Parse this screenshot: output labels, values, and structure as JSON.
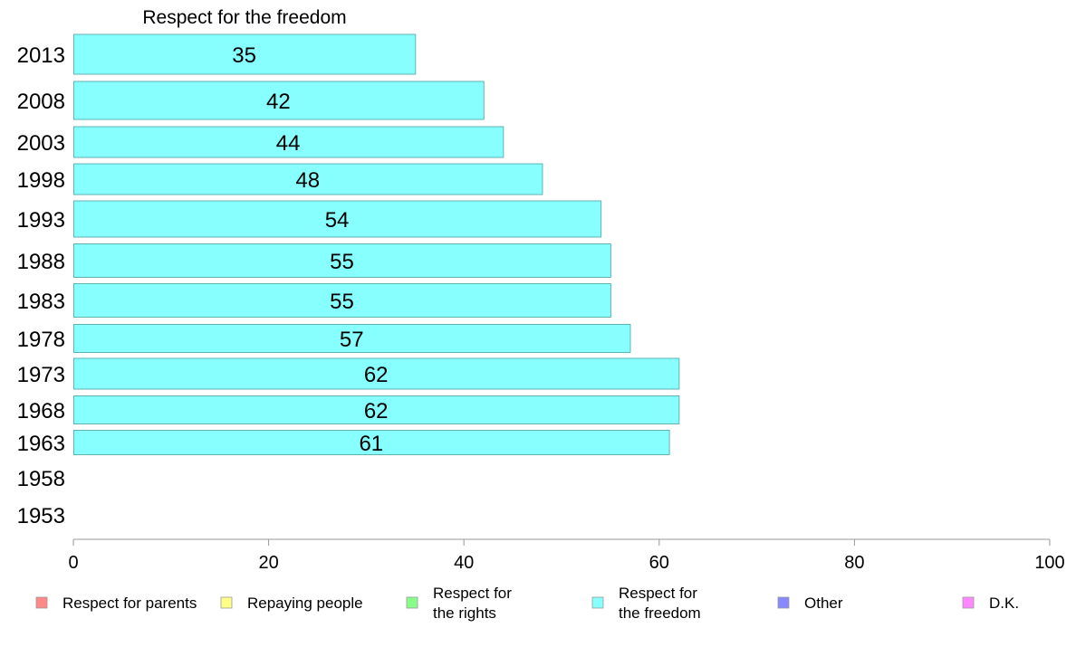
{
  "chart_data": {
    "type": "bar",
    "orientation": "horizontal",
    "title": "Respect for the freedom",
    "xlabel": "",
    "ylabel": "",
    "categories": [
      "2013",
      "2008",
      "2003",
      "1998",
      "1993",
      "1988",
      "1983",
      "1978",
      "1973",
      "1968",
      "1963",
      "1958",
      "1953"
    ],
    "values": [
      35,
      42,
      44,
      48,
      54,
      55,
      55,
      57,
      62,
      62,
      61,
      null,
      null
    ],
    "value_labels": [
      "35",
      "42",
      "44",
      "48",
      "54",
      "55",
      "55",
      "57",
      "62",
      "62",
      "61",
      "",
      ""
    ],
    "xlim": [
      0,
      100
    ],
    "xticks": [
      "0",
      "20",
      "40",
      "60",
      "80",
      "100"
    ],
    "grid": false,
    "legend_position": "bottom",
    "bar_color": "#88ffff",
    "bar_border_color": "#5fb3b3",
    "legend": [
      {
        "label": "Respect for parents",
        "color": "#ff8888"
      },
      {
        "label": "Repaying people",
        "color": "#ffff88"
      },
      {
        "label": "Respect for\nthe rights",
        "color": "#88ff88"
      },
      {
        "label": "Respect for\nthe freedom",
        "color": "#88ffff"
      },
      {
        "label": "Other",
        "color": "#8888ff"
      },
      {
        "label": "D.K.",
        "color": "#ff88ff"
      }
    ]
  }
}
